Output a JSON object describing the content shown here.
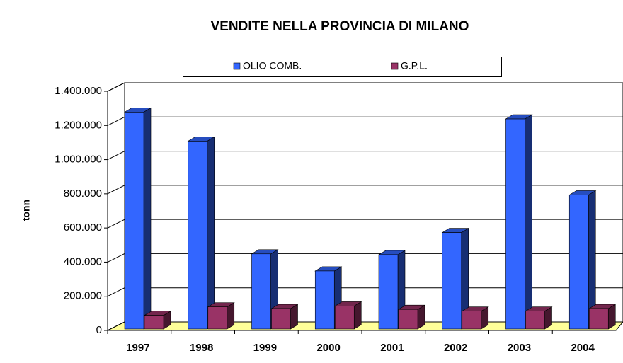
{
  "chart_data": {
    "type": "bar3d",
    "title": "VENDITE  NELLA PROVINCIA DI MILANO",
    "y_label": "tonn",
    "categories": [
      "1997",
      "1998",
      "1999",
      "2000",
      "2001",
      "2002",
      "2003",
      "2004"
    ],
    "series": [
      {
        "name": "OLIO COMB.",
        "color": "#3366ff",
        "values": [
          1270000,
          1100000,
          440000,
          340000,
          435000,
          565000,
          1230000,
          785000
        ]
      },
      {
        "name": "G.P.L.",
        "color": "#993366",
        "values": [
          80000,
          130000,
          120000,
          135000,
          115000,
          105000,
          105000,
          120000
        ]
      }
    ],
    "ylim": [
      0,
      1400000
    ],
    "yticks": [
      0,
      {
        "value": 200000,
        "label": "200.000"
      },
      {
        "value": 400000,
        "label": "400.000"
      },
      {
        "value": 600000,
        "label": "600.000"
      },
      {
        "value": 800000,
        "label": "800.000"
      },
      {
        "value": 1000000,
        "label": "1.000.000"
      },
      {
        "value": 1200000,
        "label": "1.200.000"
      },
      {
        "value": 1400000,
        "label": "1.400.000"
      }
    ],
    "grid": true
  }
}
